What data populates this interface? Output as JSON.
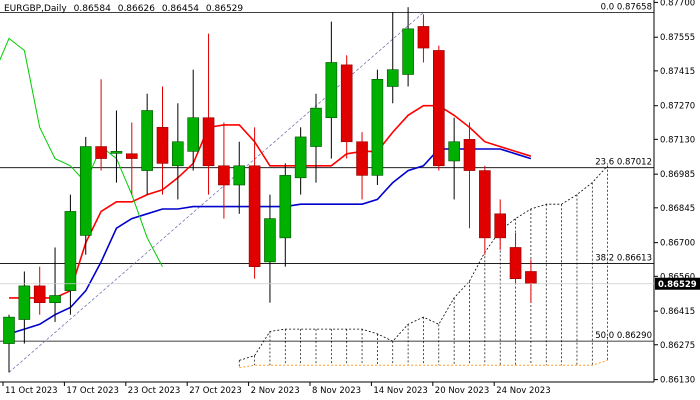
{
  "header": {
    "symbol": "EURGBP,Daily",
    "open": "0.86584",
    "high": "0.86626",
    "low": "0.86454",
    "close": "0.86529"
  },
  "chart_data": {
    "type": "candlestick",
    "symbol": "EURGBP",
    "timeframe": "Daily",
    "ylim": [
      0.8612,
      0.8771
    ],
    "y_ticks": [
      "0.87700",
      "0.87555",
      "0.87415",
      "0.87270",
      "0.87130",
      "0.86985",
      "0.86845",
      "0.86700",
      "0.86560",
      "0.86415",
      "0.86275",
      "0.86130"
    ],
    "x_ticks": [
      "11 Oct 2023",
      "17 Oct 2023",
      "23 Oct 2023",
      "27 Oct 2023",
      "2 Nov 2023",
      "8 Nov 2023",
      "14 Nov 2023",
      "20 Nov 2023",
      "24 Nov 2023"
    ],
    "x_tick_index": [
      0,
      4,
      8,
      12,
      16,
      20,
      24,
      28,
      32
    ],
    "current_price": "0.86529",
    "candles": [
      {
        "o": 0.8628,
        "h": 0.864,
        "l": 0.8616,
        "c": 0.8639
      },
      {
        "o": 0.8638,
        "h": 0.8658,
        "l": 0.8628,
        "c": 0.8652
      },
      {
        "o": 0.8652,
        "h": 0.866,
        "l": 0.864,
        "c": 0.8645
      },
      {
        "o": 0.8645,
        "h": 0.8668,
        "l": 0.8637,
        "c": 0.8648
      },
      {
        "o": 0.865,
        "h": 0.869,
        "l": 0.864,
        "c": 0.8683
      },
      {
        "o": 0.8673,
        "h": 0.8714,
        "l": 0.8665,
        "c": 0.871
      },
      {
        "o": 0.871,
        "h": 0.8738,
        "l": 0.87,
        "c": 0.8705
      },
      {
        "o": 0.8708,
        "h": 0.8725,
        "l": 0.8695,
        "c": 0.8708
      },
      {
        "o": 0.8707,
        "h": 0.872,
        "l": 0.869,
        "c": 0.8705
      },
      {
        "o": 0.87,
        "h": 0.8732,
        "l": 0.869,
        "c": 0.8725
      },
      {
        "o": 0.8718,
        "h": 0.8735,
        "l": 0.869,
        "c": 0.8703
      },
      {
        "o": 0.8702,
        "h": 0.8728,
        "l": 0.8688,
        "c": 0.8712
      },
      {
        "o": 0.8708,
        "h": 0.8742,
        "l": 0.87,
        "c": 0.8722
      },
      {
        "o": 0.8722,
        "h": 0.8757,
        "l": 0.869,
        "c": 0.8702
      },
      {
        "o": 0.8702,
        "h": 0.872,
        "l": 0.868,
        "c": 0.8694
      },
      {
        "o": 0.8694,
        "h": 0.8712,
        "l": 0.8682,
        "c": 0.8702
      },
      {
        "o": 0.8702,
        "h": 0.8718,
        "l": 0.8655,
        "c": 0.866
      },
      {
        "o": 0.8662,
        "h": 0.869,
        "l": 0.8645,
        "c": 0.868
      },
      {
        "o": 0.8672,
        "h": 0.8703,
        "l": 0.866,
        "c": 0.8698
      },
      {
        "o": 0.8697,
        "h": 0.8718,
        "l": 0.869,
        "c": 0.8714
      },
      {
        "o": 0.871,
        "h": 0.8732,
        "l": 0.8695,
        "c": 0.8726
      },
      {
        "o": 0.8722,
        "h": 0.8762,
        "l": 0.8705,
        "c": 0.8745
      },
      {
        "o": 0.8744,
        "h": 0.8748,
        "l": 0.8705,
        "c": 0.8712
      },
      {
        "o": 0.8712,
        "h": 0.8716,
        "l": 0.8688,
        "c": 0.8698
      },
      {
        "o": 0.8698,
        "h": 0.8742,
        "l": 0.8694,
        "c": 0.8738
      },
      {
        "o": 0.8735,
        "h": 0.8766,
        "l": 0.8728,
        "c": 0.8742
      },
      {
        "o": 0.874,
        "h": 0.8768,
        "l": 0.8735,
        "c": 0.8759
      },
      {
        "o": 0.876,
        "h": 0.8765,
        "l": 0.8745,
        "c": 0.8751
      },
      {
        "o": 0.875,
        "h": 0.8752,
        "l": 0.87,
        "c": 0.8702
      },
      {
        "o": 0.8704,
        "h": 0.8722,
        "l": 0.8688,
        "c": 0.8712
      },
      {
        "o": 0.8713,
        "h": 0.872,
        "l": 0.8676,
        "c": 0.87
      },
      {
        "o": 0.87,
        "h": 0.8702,
        "l": 0.8665,
        "c": 0.8672
      },
      {
        "o": 0.8682,
        "h": 0.8688,
        "l": 0.8667,
        "c": 0.8672
      },
      {
        "o": 0.8668,
        "h": 0.8674,
        "l": 0.8653,
        "c": 0.8655
      },
      {
        "o": 0.8658,
        "h": 0.8663,
        "l": 0.8645,
        "c": 0.8653
      }
    ],
    "fib_levels": [
      {
        "label": "0.0 0.87658",
        "value": 0.87658
      },
      {
        "label": "23.6 0.87012",
        "value": 0.87012
      },
      {
        "label": "38.2 0.86613",
        "value": 0.86613
      },
      {
        "label": "50.0 0.86290",
        "value": 0.8629
      }
    ],
    "tenkan_line": [
      0.8647,
      0.8647,
      0.8647,
      0.8647,
      0.865,
      0.867,
      0.8683,
      0.8687,
      0.8687,
      0.869,
      0.8692,
      0.8697,
      0.8703,
      0.8718,
      0.8719,
      0.8719,
      0.8712,
      0.8702,
      0.8702,
      0.8702,
      0.8702,
      0.8702,
      0.8707,
      0.8708,
      0.8708,
      0.8716,
      0.8723,
      0.8727,
      0.8727,
      0.8723,
      0.8718,
      0.8712,
      0.871,
      0.8708,
      0.8706
    ],
    "kijun_line": [
      0.8632,
      0.8634,
      0.8636,
      0.864,
      0.8643,
      0.865,
      0.8662,
      0.8676,
      0.868,
      0.8682,
      0.8684,
      0.8684,
      0.8685,
      0.8685,
      0.8685,
      0.8685,
      0.8685,
      0.8685,
      0.8685,
      0.8686,
      0.8686,
      0.8686,
      0.8686,
      0.8686,
      0.8688,
      0.8695,
      0.87,
      0.8702,
      0.8709,
      0.8709,
      0.8709,
      0.8709,
      0.8709,
      0.8707,
      0.8705
    ],
    "chikou_span": [
      0.874,
      0.8755,
      0.875,
      0.8718,
      0.8705,
      0.8702,
      0.8695,
      0.871,
      0.8705,
      0.869,
      0.8672,
      0.866
    ],
    "cloud_upper": [
      null,
      null,
      null,
      null,
      null,
      null,
      null,
      null,
      null,
      null,
      null,
      null,
      null,
      null,
      null,
      0.8621,
      0.8623,
      0.8633,
      0.8634,
      0.8634,
      0.8634,
      0.8634,
      0.8634,
      0.8634,
      0.8632,
      0.8629,
      0.8636,
      0.8639,
      0.8636,
      0.8647,
      0.8654,
      0.8666,
      0.8675,
      0.868,
      0.8684,
      0.8686,
      0.8686,
      0.869,
      0.8695,
      0.8702
    ],
    "cloud_lower": [
      null,
      null,
      null,
      null,
      null,
      null,
      null,
      null,
      null,
      null,
      null,
      null,
      null,
      null,
      null,
      0.8618,
      0.8619,
      0.8619,
      0.8619,
      0.8619,
      0.8619,
      0.8619,
      0.8619,
      0.8619,
      0.8619,
      0.8619,
      0.8619,
      0.8619,
      0.8619,
      0.8619,
      0.8619,
      0.8619,
      0.8619,
      0.8619,
      0.8619,
      0.8619,
      0.8619,
      0.8619,
      0.8619,
      0.8621
    ],
    "colors": {
      "bull": "#00b000",
      "bear": "#e00000",
      "wick": "#000000",
      "tenkan": "#ff0000",
      "kijun": "#0000cc",
      "chikou": "#00cc00",
      "cloud_upper": "#000000",
      "cloud_lower": "#ff8c00",
      "cloud_hatch": "#000000",
      "fib_line": "#000000",
      "trend_line": "#6666aa",
      "price_tag_bg": "#000000",
      "price_tag_text": "#ffffff"
    }
  }
}
